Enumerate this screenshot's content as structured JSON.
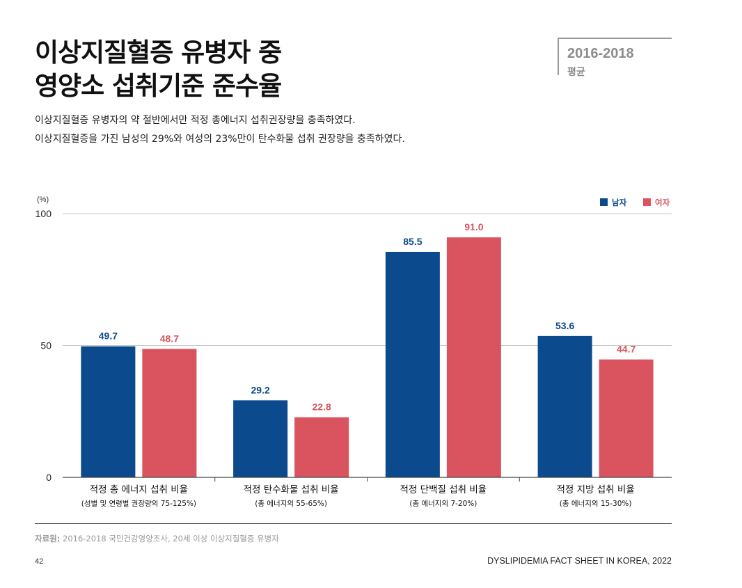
{
  "page": {
    "title_lines": [
      "이상지질혈증 유병자 중",
      "영양소 섭취기준 준수율"
    ],
    "period": {
      "years": "2016-2018",
      "label": "평균"
    },
    "subtitle_lines": [
      "이상지질혈증 유병자의 약 절반에서만 적정 총에너지 섭취권장량을 충족하였다.",
      "이상지질혈증을 가진 남성의 29%와 여성의 23%만이 탄수화물 섭취 권장량을 충족하였다."
    ],
    "source_label": "자료원:",
    "source_text": " 2016-2018 국민건강영양조사, 20세 이상 이상지질혈증 유병자",
    "page_number": "42",
    "footer_title": "DYSLIPIDEMIA FACT SHEET IN KOREA, 2022"
  },
  "chart_data": {
    "type": "bar",
    "ylabel": "(%)",
    "ylim": [
      0,
      100
    ],
    "yticks": [
      "0",
      "50",
      "100"
    ],
    "grid": true,
    "legend_position": "top-right",
    "categories": [
      "적정 총 에너지 섭취 비율",
      "적정 탄수화물 섭취 비율",
      "적정 단백질 섭취 비율",
      "적정 지방 섭취 비율"
    ],
    "category_notes": [
      "(성별 및 연령별 권장량의 75-125%)",
      "(총 에너지의 55-65%)",
      "(총 에너지의 7-20%)",
      "(총 에너지의 15-30%)"
    ],
    "series": [
      {
        "name": "남자",
        "color": "#0b4a8c",
        "values": [
          49.7,
          29.2,
          85.5,
          53.6
        ],
        "labels": [
          "49.7",
          "29.2",
          "85.5",
          "53.6"
        ]
      },
      {
        "name": "여자",
        "color": "#d9545f",
        "values": [
          48.7,
          22.8,
          91.0,
          44.7
        ],
        "labels": [
          "48.7",
          "22.8",
          "91.0",
          "44.7"
        ]
      }
    ]
  }
}
